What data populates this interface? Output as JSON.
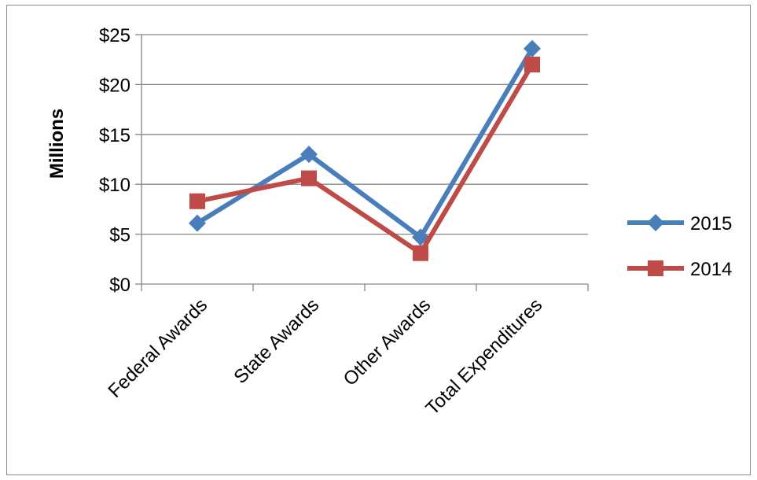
{
  "chart_data": {
    "type": "line",
    "categories": [
      "Federal Awards",
      "State Awards",
      "Other Awards",
      "Total Expenditures"
    ],
    "series": [
      {
        "name": "2015",
        "values": [
          6.1,
          13.0,
          4.7,
          23.6
        ],
        "color": "#4a7ebb",
        "marker": "diamond"
      },
      {
        "name": "2014",
        "values": [
          8.3,
          10.6,
          3.1,
          22.0
        ],
        "color": "#be4b48",
        "marker": "square"
      }
    ],
    "ylabel": "Millions",
    "ylim": [
      0,
      25
    ],
    "yticks": [
      0,
      5,
      10,
      15,
      20,
      25
    ],
    "ytick_labels": [
      "$0",
      "$5",
      "$10",
      "$15",
      "$20",
      "$25"
    ],
    "grid": "horizontal",
    "legend_position": "right"
  }
}
